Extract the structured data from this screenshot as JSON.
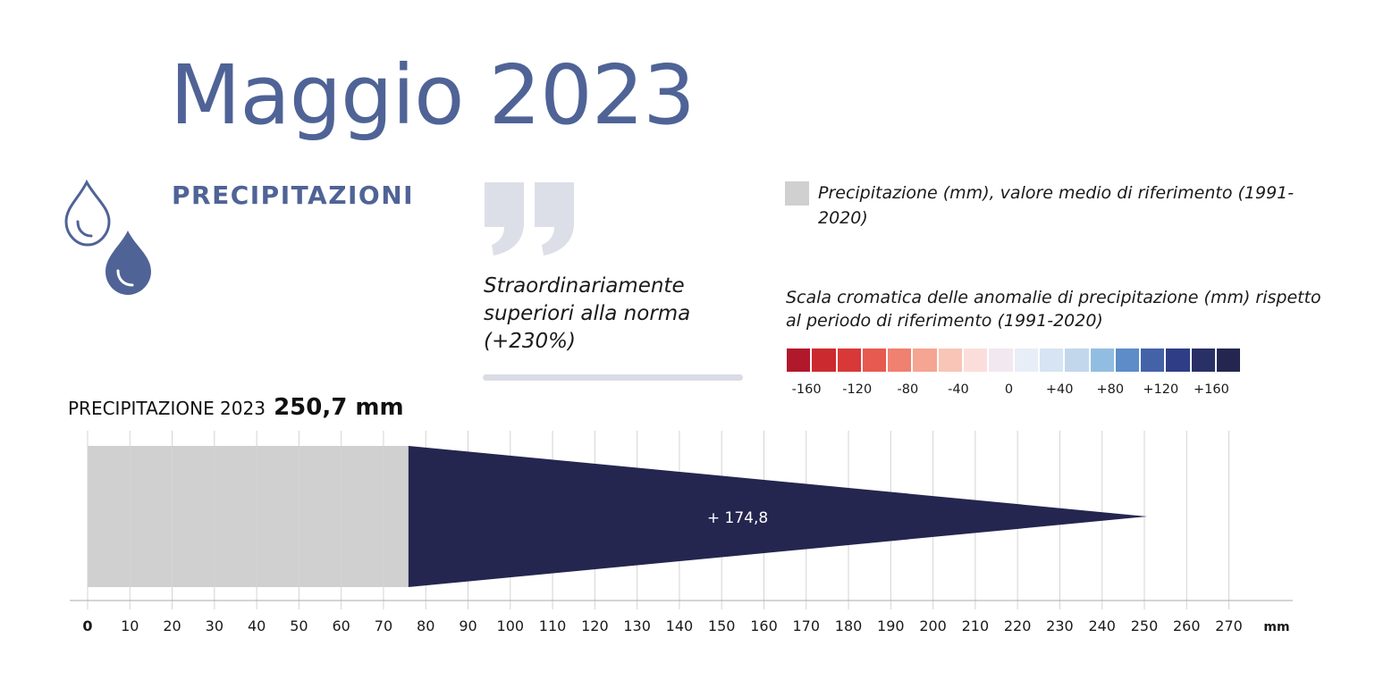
{
  "title": "Maggio 2023",
  "section_label": "PRECIPITAZIONI",
  "icons": {
    "drops": "water-drops-icon",
    "quote": "quotation-mark-icon"
  },
  "verdict": "Straordinariamente superiori alla norma (+230%)",
  "legend": {
    "reference_label": "Precipitazione (mm), valore medio di riferimento (1991-2020)",
    "reference_color": "#d0d0d0",
    "scale_title": "Scala cromatica delle anomalie di precipitazione (mm) rispetto al periodo di riferimento (1991-2020)",
    "scale_colors": [
      "#b2182b",
      "#cb2b2f",
      "#d93838",
      "#e65a4f",
      "#f08070",
      "#f5a591",
      "#f8c5b6",
      "#fbdedb",
      "#f2e8ef",
      "#e8eef7",
      "#d6e4f3",
      "#c3d7ec",
      "#92bde2",
      "#5d8cc8",
      "#4462a8",
      "#2e3d86",
      "#283066",
      "#242650"
    ],
    "scale_labels": [
      "-160",
      "-120",
      "-80",
      "-40",
      "0",
      "+40",
      "+80",
      "+120",
      "+160"
    ]
  },
  "total": {
    "label": "PRECIPITAZIONE 2023",
    "value": "250,7 mm"
  },
  "chart_data": {
    "type": "bar",
    "orientation": "horizontal",
    "reference_value": 75.9,
    "reference_color": "#d0d0d0",
    "observed_value": 250.7,
    "anomaly": 174.8,
    "anomaly_label": "+ 174,8",
    "anomaly_color": "#242650",
    "xlim": [
      0,
      280
    ],
    "xticks": [
      0,
      10,
      20,
      30,
      40,
      50,
      60,
      70,
      80,
      90,
      100,
      110,
      120,
      130,
      140,
      150,
      160,
      170,
      180,
      190,
      200,
      210,
      220,
      230,
      240,
      250,
      260,
      270
    ],
    "xlabel": "mm",
    "grid": true
  }
}
